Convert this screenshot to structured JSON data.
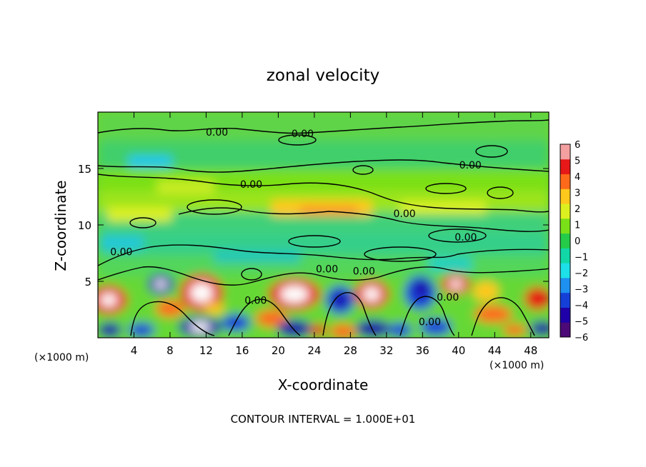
{
  "chart_data": {
    "type": "heatmap",
    "title": "zonal velocity",
    "xlabel": "X-coordinate",
    "ylabel": "Z-coordinate",
    "x_unit": "(×1000 m)",
    "x_unit_right": "(×1000 m)",
    "xlim": [
      0,
      50
    ],
    "ylim": [
      0,
      20
    ],
    "xticks": [
      4,
      8,
      12,
      16,
      20,
      24,
      28,
      32,
      36,
      40,
      44,
      48
    ],
    "yticks": [
      5,
      10,
      15
    ],
    "colorbar": {
      "min": -6,
      "max": 6,
      "ticks": [
        6,
        5,
        4,
        3,
        2,
        1,
        0,
        -1,
        -2,
        -3,
        -4,
        -5,
        -6
      ],
      "colors": [
        "#4b0a78",
        "#1f00a8",
        "#1440d8",
        "#1e90f0",
        "#1ee0e8",
        "#12d8a8",
        "#24cc4a",
        "#7ae018",
        "#dcf020",
        "#ffc81c",
        "#ff6a1a",
        "#e61818",
        "#f4a0a0"
      ]
    },
    "contour_labels": [
      {
        "text": "0.00",
        "x": 13.2,
        "z": 17.9
      },
      {
        "text": "0.00",
        "x": 22.7,
        "z": 17.8
      },
      {
        "text": "0.00",
        "x": 41.3,
        "z": 15.0
      },
      {
        "text": "0.00",
        "x": 17.0,
        "z": 13.3
      },
      {
        "text": "0.00",
        "x": 34.0,
        "z": 10.7
      },
      {
        "text": "0.00",
        "x": 40.8,
        "z": 8.6
      },
      {
        "text": "0.00",
        "x": 2.6,
        "z": 7.3
      },
      {
        "text": "0.00",
        "x": 25.4,
        "z": 5.8
      },
      {
        "text": "0.00",
        "x": 29.5,
        "z": 5.6
      },
      {
        "text": "0.00",
        "x": 17.5,
        "z": 3.0
      },
      {
        "text": "0.00",
        "x": 38.8,
        "z": 3.3
      },
      {
        "text": "0.00",
        "x": 36.8,
        "z": 1.1
      }
    ],
    "legend_position": "right"
  },
  "footer": "CONTOUR INTERVAL = 1.000E+01"
}
